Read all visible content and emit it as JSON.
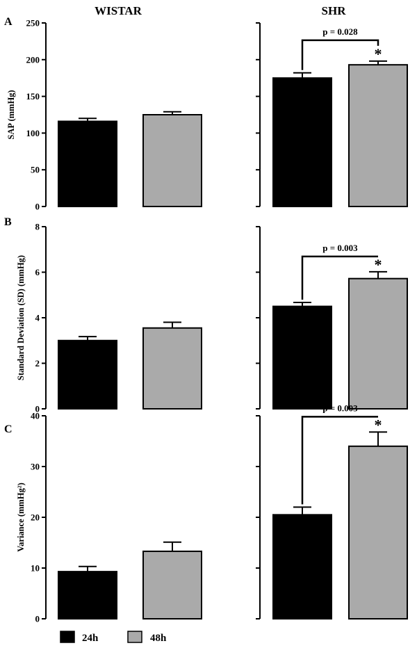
{
  "columns": [
    "WISTAR",
    "SHR"
  ],
  "colors": {
    "h24": "#000000",
    "h48": "#aaaaaa",
    "axis": "#000000"
  },
  "legend": [
    {
      "key": "h24",
      "label": "24h"
    },
    {
      "key": "h48",
      "label": "48h"
    }
  ],
  "chart_data": [
    {
      "type": "bar",
      "panel": "A",
      "ylabel": "SAP (mmHg)",
      "ylim": [
        0,
        250
      ],
      "yticks": [
        0,
        50,
        100,
        150,
        200,
        250
      ],
      "groups": [
        {
          "name": "WISTAR",
          "categories": [
            "24h",
            "48h"
          ],
          "values": [
            116,
            125
          ],
          "errors": [
            4,
            4
          ]
        },
        {
          "name": "SHR",
          "categories": [
            "24h",
            "48h"
          ],
          "values": [
            175,
            193
          ],
          "errors": [
            7,
            5
          ],
          "comparison": "p = 0.028",
          "significant": "*"
        }
      ]
    },
    {
      "type": "bar",
      "panel": "B",
      "ylabel": "Standard Deviation (SD) (mmHg)",
      "ylim": [
        0,
        8
      ],
      "yticks": [
        0,
        2,
        4,
        6,
        8
      ],
      "groups": [
        {
          "name": "WISTAR",
          "categories": [
            "24h",
            "48h"
          ],
          "values": [
            3.0,
            3.55
          ],
          "errors": [
            0.17,
            0.25
          ]
        },
        {
          "name": "SHR",
          "categories": [
            "24h",
            "48h"
          ],
          "values": [
            4.5,
            5.72
          ],
          "errors": [
            0.17,
            0.3
          ],
          "comparison": "p = 0.003",
          "significant": "*"
        }
      ]
    },
    {
      "type": "bar",
      "panel": "C",
      "ylabel": "Variance (mmHg²)",
      "ylim": [
        0,
        40
      ],
      "yticks": [
        0,
        10,
        20,
        30,
        40
      ],
      "groups": [
        {
          "name": "WISTAR",
          "categories": [
            "24h",
            "48h"
          ],
          "values": [
            9.3,
            13.3
          ],
          "errors": [
            1.0,
            1.8
          ]
        },
        {
          "name": "SHR",
          "categories": [
            "24h",
            "48h"
          ],
          "values": [
            20.5,
            34.0
          ],
          "errors": [
            1.5,
            2.8
          ],
          "comparison": "p = 0.003",
          "significant": "*"
        }
      ]
    }
  ]
}
